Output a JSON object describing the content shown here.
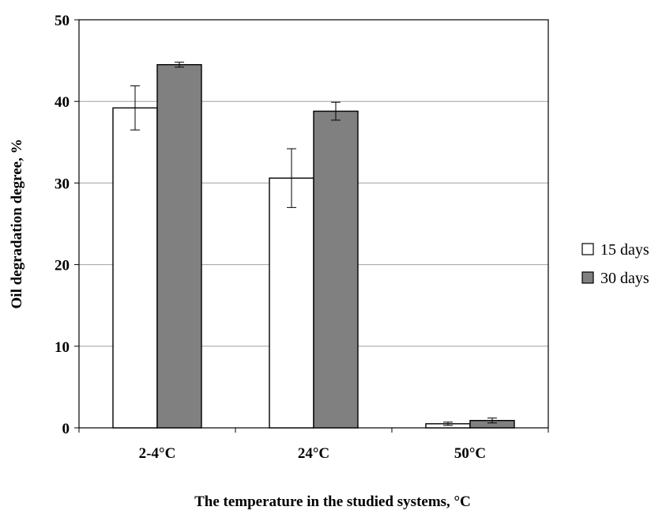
{
  "chart_data": {
    "type": "bar",
    "title": "",
    "xlabel": "The temperature in the studied systems, °C",
    "ylabel": "Oil degradation degree, %",
    "ylim": [
      0,
      50
    ],
    "yticks": [
      0,
      10,
      20,
      30,
      40,
      50
    ],
    "grid": true,
    "legend_position": "right",
    "categories": [
      "2-4°C",
      "24°C",
      "50°C"
    ],
    "series": [
      {
        "name": "15 days",
        "color": "#ffffff",
        "values": [
          39.2,
          30.6,
          0.5
        ],
        "errors": [
          2.7,
          3.6,
          0.2
        ]
      },
      {
        "name": "30 days",
        "color": "#808080",
        "values": [
          44.5,
          38.8,
          0.9
        ],
        "errors": [
          0.3,
          1.1,
          0.3
        ]
      }
    ]
  }
}
